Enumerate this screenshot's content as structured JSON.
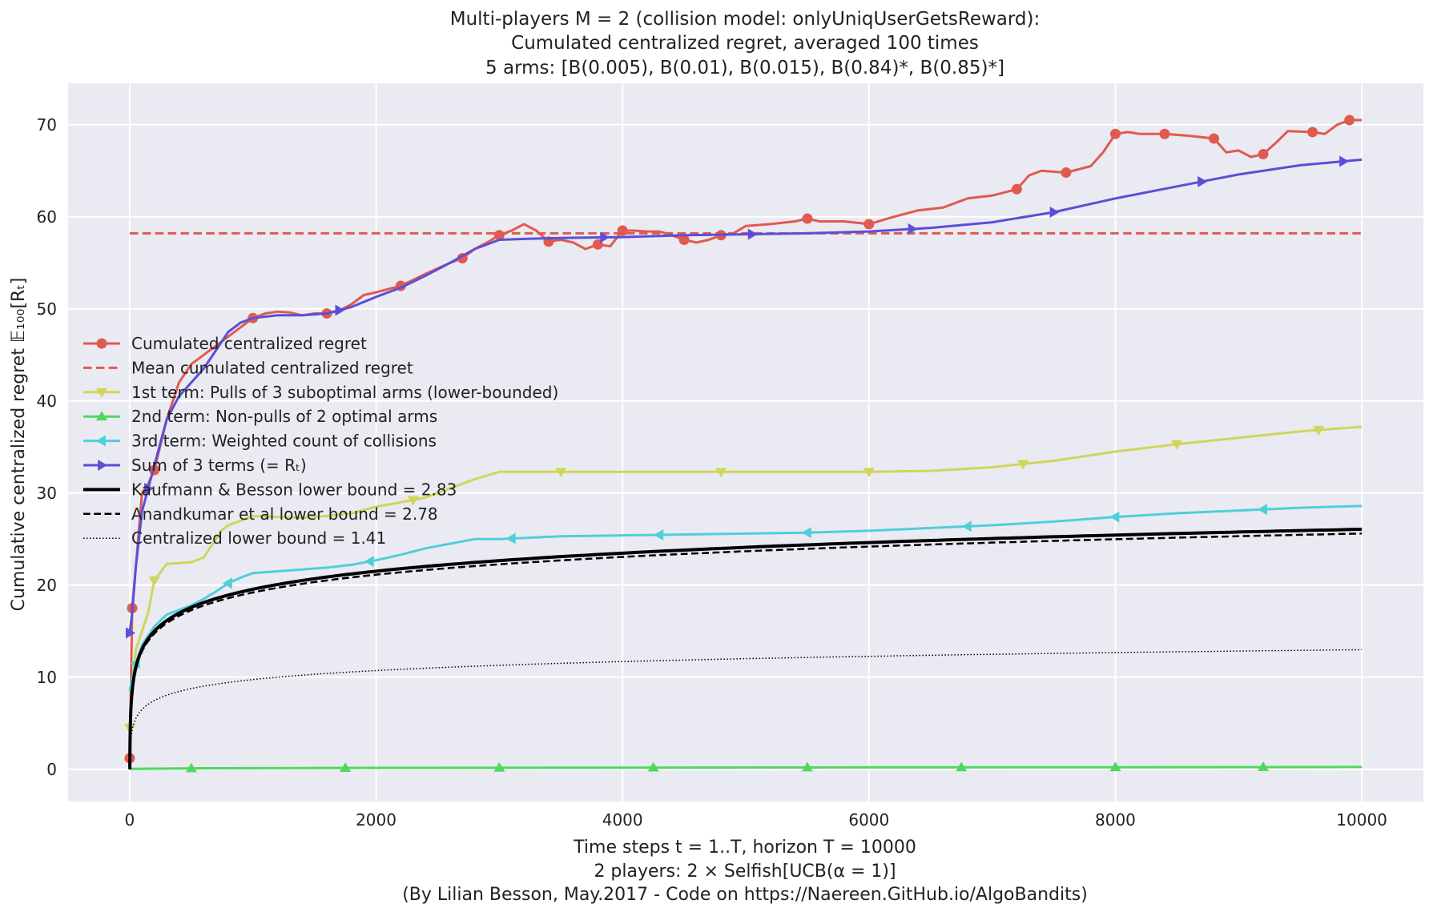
{
  "chart_data": {
    "type": "line",
    "title_lines": [
      "Multi-players M = 2 (collision model: onlyUniqUserGetsReward):",
      "Cumulated centralized regret, averaged 100 times",
      "5 arms: [B(0.005), B(0.01), B(0.015), B(0.84)*, B(0.85)*]"
    ],
    "xlabel_lines": [
      "Time steps t = 1..T, horizon T = 10000",
      "2 players: 2 × Selfish[UCB(α = 1)]",
      "(By Lilian Besson, May.2017 - Code on https://Naereen.GitHub.io/AlgoBandits)"
    ],
    "ylabel": "Cumulative centralized regret 𝔼₁₀₀[Rₜ]",
    "xlim": [
      -500,
      10500
    ],
    "ylim": [
      -3.5,
      74.5
    ],
    "xticks": [
      0,
      2000,
      4000,
      6000,
      8000,
      10000
    ],
    "yticks": [
      0,
      10,
      20,
      30,
      40,
      50,
      60,
      70
    ],
    "grid": true,
    "legend_position": "center-left",
    "colors": {
      "background": "#eaeaf2",
      "grid": "#ffffff"
    },
    "series": [
      {
        "name": "Cumulated centralized regret",
        "color": "#e05a4f",
        "style": "solid",
        "width": 3,
        "marker": "circle",
        "x": [
          0,
          20,
          50,
          100,
          150,
          200,
          300,
          400,
          500,
          600,
          700,
          800,
          900,
          1000,
          1100,
          1200,
          1300,
          1400,
          1500,
          1600,
          1700,
          1800,
          1900,
          2000,
          2200,
          2400,
          2600,
          2700,
          2800,
          2900,
          3000,
          3100,
          3200,
          3300,
          3400,
          3500,
          3600,
          3700,
          3800,
          3900,
          4000,
          4100,
          4200,
          4300,
          4400,
          4500,
          4600,
          4700,
          4800,
          4900,
          5000,
          5200,
          5400,
          5500,
          5600,
          5800,
          6000,
          6200,
          6400,
          6600,
          6800,
          7000,
          7200,
          7300,
          7400,
          7600,
          7800,
          7900,
          8000,
          8100,
          8200,
          8400,
          8600,
          8800,
          8900,
          9000,
          9100,
          9200,
          9300,
          9400,
          9600,
          9700,
          9800,
          9900,
          10000
        ],
        "y": [
          1.2,
          17.5,
          22,
          30,
          31,
          32.5,
          38,
          42,
          44,
          45,
          46,
          47,
          48,
          49,
          49.5,
          49.7,
          49.6,
          49.3,
          49.5,
          49.5,
          49.8,
          50.5,
          51.5,
          51.8,
          52.5,
          53.8,
          55,
          55.5,
          56.5,
          57.2,
          58,
          58.5,
          59.2,
          58.5,
          57.3,
          57.5,
          57.2,
          56.5,
          57,
          56.8,
          58.5,
          58.5,
          58.4,
          58.4,
          58.0,
          57.5,
          57.2,
          57.5,
          58,
          58.2,
          59,
          59.2,
          59.5,
          59.8,
          59.5,
          59.5,
          59.2,
          60,
          60.7,
          61,
          62,
          62.3,
          63,
          64.5,
          65,
          64.8,
          65.5,
          67,
          69,
          69.2,
          69,
          69,
          68.8,
          68.5,
          67,
          67.2,
          66.5,
          66.8,
          68,
          69.3,
          69.2,
          69,
          70,
          70.5,
          70.5
        ]
      },
      {
        "name": "Mean cumulated centralized regret",
        "color": "#e05a4f",
        "style": "dashed",
        "width": 3,
        "marker": "none",
        "x": [
          0,
          10000
        ],
        "y": [
          58.2,
          58.2
        ]
      },
      {
        "name": " 1st term: Pulls of 3 suboptimal arms (lower-bounded)",
        "color": "#cfd65a",
        "style": "solid",
        "width": 3,
        "marker": "triangle-down",
        "x": [
          0,
          20,
          50,
          100,
          150,
          200,
          300,
          400,
          500,
          600,
          700,
          750,
          800,
          900,
          1000,
          1200,
          1400,
          1600,
          1800,
          2000,
          2200,
          2400,
          2600,
          2800,
          3000,
          3200,
          3500,
          4000,
          5000,
          6000,
          6500,
          7000,
          7500,
          8000,
          8500,
          9000,
          9500,
          10000
        ],
        "y": [
          4.5,
          9,
          13,
          15,
          17,
          20.5,
          22.3,
          22.4,
          22.5,
          23,
          25,
          26,
          26.5,
          27,
          27.5,
          27.4,
          27.3,
          27.5,
          27.8,
          28.5,
          29,
          29.5,
          30.5,
          31.5,
          32.3,
          32.3,
          32.3,
          32.3,
          32.3,
          32.3,
          32.4,
          32.8,
          33.5,
          34.5,
          35.3,
          36,
          36.7,
          37.2
        ]
      },
      {
        "name": " 2nd term: Non-pulls of 2 optimal arms",
        "color": "#4fd85e",
        "style": "solid",
        "width": 3,
        "marker": "triangle-up",
        "x": [
          0,
          500,
          1000,
          2000,
          4000,
          6000,
          8000,
          10000
        ],
        "y": [
          0.05,
          0.1,
          0.12,
          0.15,
          0.18,
          0.2,
          0.22,
          0.25
        ]
      },
      {
        "name": " 3rd term: Weighted count of collisions",
        "color": "#4fcfd8",
        "style": "solid",
        "width": 3,
        "marker": "triangle-left",
        "x": [
          0,
          20,
          50,
          100,
          200,
          300,
          400,
          500,
          600,
          700,
          800,
          900,
          1000,
          1200,
          1400,
          1600,
          1800,
          2000,
          2200,
          2400,
          2600,
          2800,
          3000,
          3500,
          4000,
          4500,
          5000,
          5500,
          6000,
          6500,
          7000,
          7500,
          8000,
          8500,
          9000,
          9500,
          10000
        ],
        "y": [
          8.5,
          10,
          11.5,
          13.5,
          15.5,
          16.8,
          17.3,
          17.8,
          18.5,
          19.3,
          20.2,
          20.8,
          21.3,
          21.5,
          21.7,
          21.9,
          22.2,
          22.7,
          23.3,
          24,
          24.5,
          25,
          25,
          25.3,
          25.4,
          25.5,
          25.6,
          25.7,
          25.9,
          26.2,
          26.5,
          26.9,
          27.4,
          27.8,
          28.1,
          28.4,
          28.6
        ]
      },
      {
        "name": "Sum of 3 terms (= Rₜ)",
        "color": "#5a4fd8",
        "style": "solid",
        "width": 3,
        "marker": "triangle-right",
        "x": [
          0,
          20,
          50,
          100,
          150,
          200,
          300,
          400,
          500,
          600,
          700,
          800,
          900,
          1000,
          1200,
          1400,
          1600,
          1800,
          2000,
          2200,
          2400,
          2600,
          2800,
          3000,
          3200,
          3500,
          4000,
          4500,
          5000,
          5500,
          6000,
          6500,
          7000,
          7500,
          8000,
          8500,
          9000,
          9500,
          10000
        ],
        "y": [
          14.8,
          17,
          22,
          28,
          30.5,
          33,
          38,
          40.5,
          42,
          43.5,
          45.5,
          47.5,
          48.5,
          49,
          49.3,
          49.3,
          49.5,
          50.2,
          51.3,
          52.3,
          53.6,
          55,
          56.5,
          57.5,
          57.6,
          57.7,
          57.8,
          58,
          58.1,
          58.2,
          58.4,
          58.8,
          59.4,
          60.5,
          62,
          63.3,
          64.6,
          65.6,
          66.2
        ]
      },
      {
        "name": "Kaufmann & Besson lower bound = 2.83",
        "color": "#000000",
        "style": "solid",
        "width": 4,
        "marker": "none",
        "coef": 2.83
      },
      {
        "name": "Anandkumar et al lower bound = 2.78",
        "color": "#000000",
        "style": "dashed",
        "width": 2.5,
        "marker": "none",
        "coef": 2.78
      },
      {
        "name": "Centralized lower bound = 1.41",
        "color": "#000000",
        "style": "dotted",
        "width": 1.5,
        "marker": "none",
        "coef": 1.41
      }
    ]
  }
}
